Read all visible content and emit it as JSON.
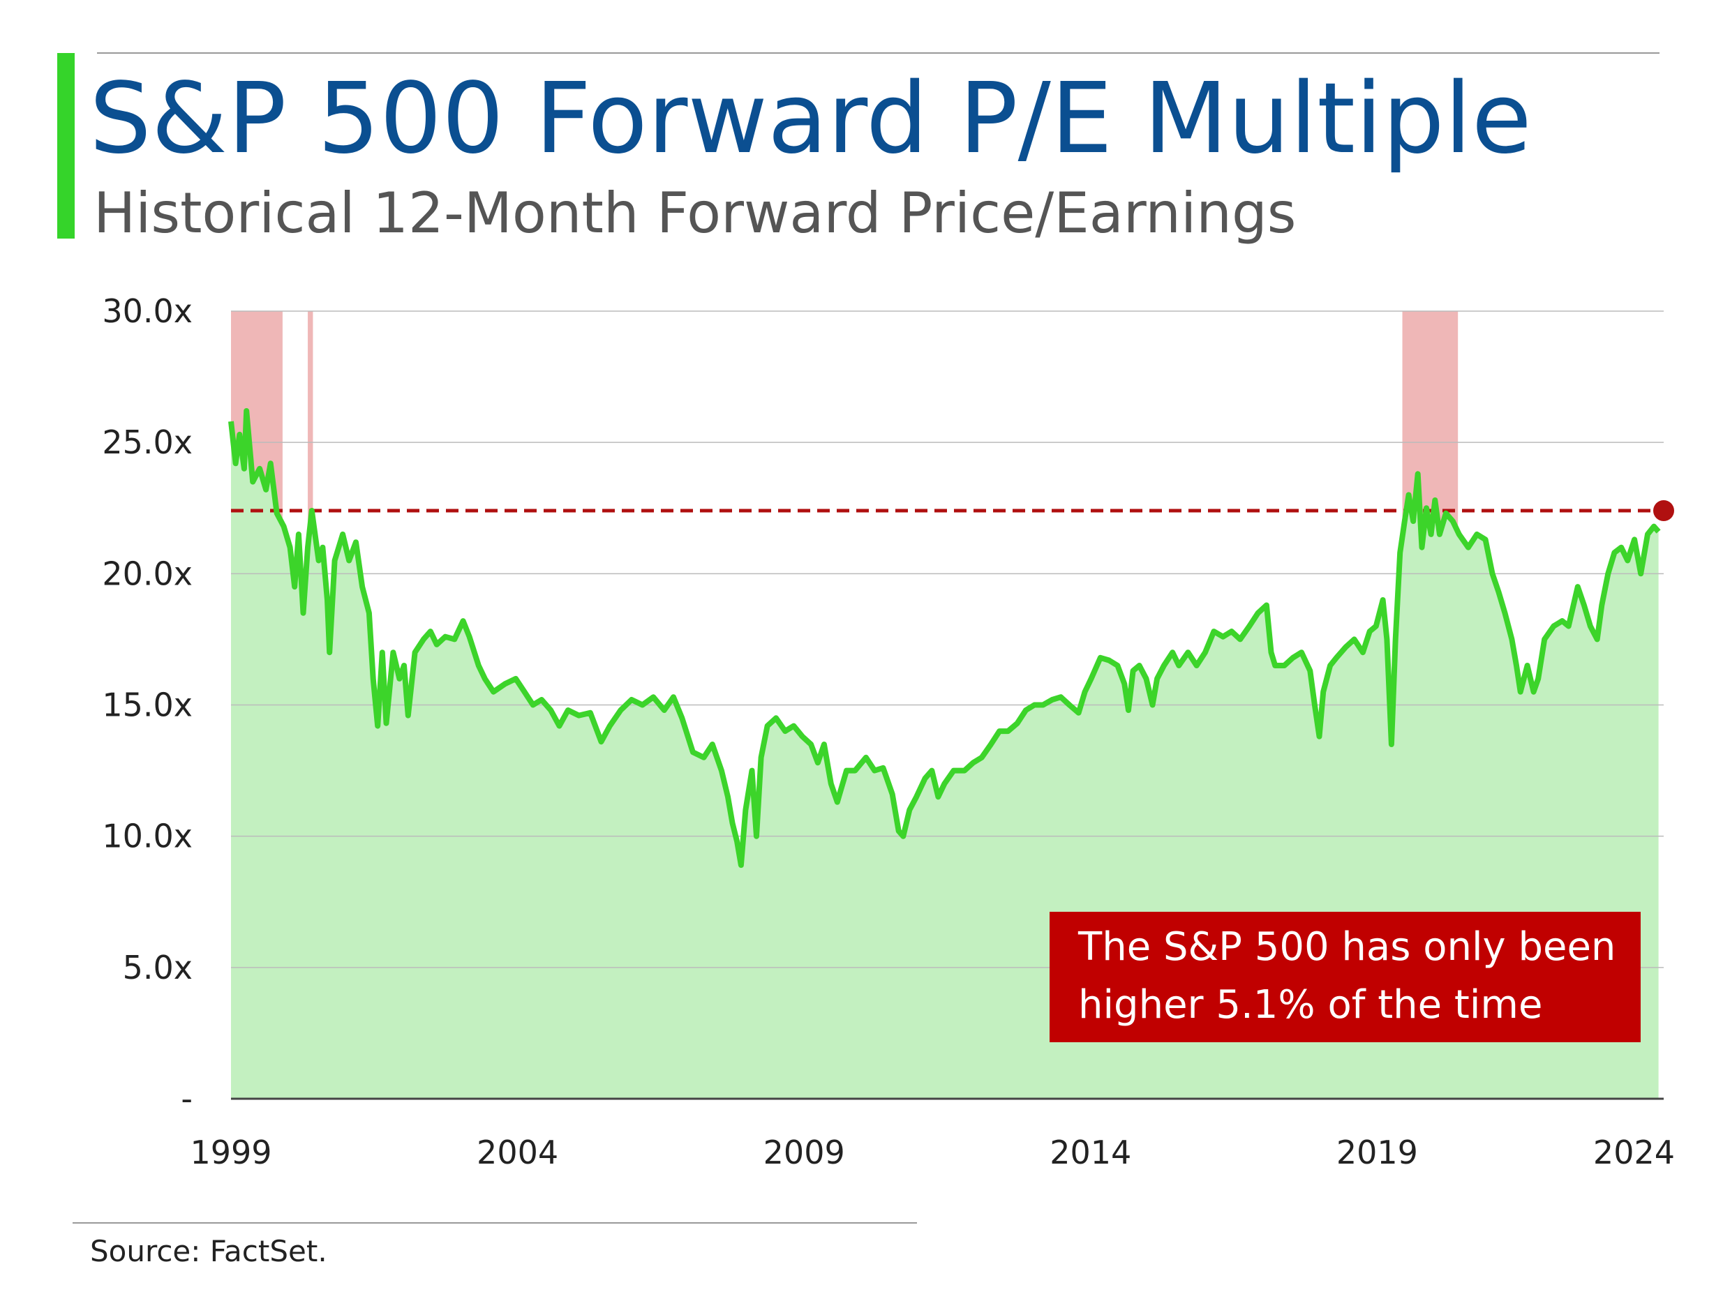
{
  "title": "S&P 500 Forward P/E Multiple",
  "subtitle": "Historical 12-Month Forward Price/Earnings",
  "source": "Source: FactSet.",
  "chart_data": {
    "type": "area-line",
    "xlim": [
      1999,
      2024
    ],
    "xticks": [
      1999,
      2004,
      2009,
      2014,
      2019,
      2024
    ],
    "ylim": [
      0,
      30
    ],
    "yticks": [
      {
        "value": 0,
        "label": "-"
      },
      {
        "value": 5,
        "label": "5.0x"
      },
      {
        "value": 10,
        "label": "10.0x"
      },
      {
        "value": 15,
        "label": "15.0x"
      },
      {
        "value": 20,
        "label": "20.0x"
      },
      {
        "value": 25,
        "label": "25.0x"
      },
      {
        "value": 30,
        "label": "30.0x"
      }
    ],
    "grid": true,
    "color": "#3cd42a",
    "fill_color": "#c3f0c0",
    "reference_line": 22.4,
    "reference_color": "#b01010",
    "highlight_ranges": [
      [
        1999.0,
        1999.9
      ],
      [
        2000.34,
        2000.43
      ],
      [
        2019.44,
        2020.41
      ]
    ],
    "highlight_color": "#e07070",
    "annotation": [
      "The S&P 500 has only been",
      "higher 5.1% of the time"
    ],
    "annotation_color": "#c00000",
    "x": [
      1999.0,
      1999.08,
      1999.15,
      1999.23,
      1999.27,
      1999.38,
      1999.5,
      1999.61,
      1999.69,
      1999.8,
      1999.92,
      2000.03,
      2000.11,
      2000.18,
      2000.26,
      2000.34,
      2000.41,
      2000.53,
      2000.6,
      2000.68,
      2000.72,
      2000.81,
      2000.95,
      2001.06,
      2001.18,
      2001.29,
      2001.41,
      2001.48,
      2001.56,
      2001.64,
      2001.71,
      2001.83,
      2001.94,
      2002.02,
      2002.09,
      2002.21,
      2002.36,
      2002.48,
      2002.59,
      2002.74,
      2002.9,
      2003.05,
      2003.16,
      2003.32,
      2003.43,
      2003.58,
      2003.78,
      2003.97,
      2004.12,
      2004.27,
      2004.42,
      2004.58,
      2004.73,
      2004.88,
      2005.07,
      2005.27,
      2005.46,
      2005.61,
      2005.8,
      2005.99,
      2006.18,
      2006.37,
      2006.56,
      2006.72,
      2006.87,
      2007.06,
      2007.25,
      2007.4,
      2007.56,
      2007.67,
      2007.75,
      2007.83,
      2007.9,
      2007.98,
      2008.09,
      2008.17,
      2008.25,
      2008.36,
      2008.51,
      2008.67,
      2008.82,
      2008.97,
      2009.12,
      2009.24,
      2009.35,
      2009.47,
      2009.58,
      2009.74,
      2009.89,
      2010.08,
      2010.23,
      2010.38,
      2010.54,
      2010.65,
      2010.73,
      2010.84,
      2010.96,
      2011.11,
      2011.23,
      2011.34,
      2011.45,
      2011.61,
      2011.8,
      2011.95,
      2012.1,
      2012.26,
      2012.41,
      2012.56,
      2012.72,
      2012.87,
      2013.02,
      2013.17,
      2013.33,
      2013.48,
      2013.63,
      2013.79,
      2013.9,
      2014.01,
      2014.17,
      2014.32,
      2014.47,
      2014.59,
      2014.66,
      2014.74,
      2014.85,
      2014.97,
      2015.08,
      2015.16,
      2015.28,
      2015.43,
      2015.54,
      2015.7,
      2015.85,
      2016.0,
      2016.15,
      2016.31,
      2016.46,
      2016.61,
      2016.77,
      2016.92,
      2017.07,
      2017.15,
      2017.22,
      2017.38,
      2017.53,
      2017.68,
      2017.83,
      2017.91,
      2017.99,
      2018.06,
      2018.18,
      2018.29,
      2018.45,
      2018.6,
      2018.75,
      2018.87,
      2018.98,
      2019.1,
      2019.17,
      2019.25,
      2019.32,
      2019.4,
      2019.48,
      2019.55,
      2019.63,
      2019.71,
      2019.78,
      2019.86,
      2019.94,
      2020.01,
      2020.09,
      2020.2,
      2020.32,
      2020.43,
      2020.59,
      2020.74,
      2020.89,
      2021.01,
      2021.12,
      2021.23,
      2021.35,
      2021.43,
      2021.5,
      2021.62,
      2021.73,
      2021.81,
      2021.92,
      2022.08,
      2022.23,
      2022.34,
      2022.5,
      2022.61,
      2022.72,
      2022.84,
      2022.92,
      2023.03,
      2023.14,
      2023.26,
      2023.37,
      2023.49,
      2023.6,
      2023.72,
      2023.83,
      2023.91
    ],
    "values": [
      25.8,
      24.2,
      25.3,
      24.0,
      26.2,
      23.5,
      24.0,
      23.2,
      24.2,
      22.3,
      21.8,
      21.0,
      19.5,
      21.5,
      18.5,
      21.0,
      22.4,
      20.5,
      21.0,
      19.0,
      17.0,
      20.5,
      21.5,
      20.5,
      21.2,
      19.5,
      18.5,
      16.0,
      14.2,
      17.0,
      14.3,
      17.0,
      16.0,
      16.5,
      14.6,
      17.0,
      17.5,
      17.8,
      17.3,
      17.6,
      17.5,
      18.2,
      17.6,
      16.5,
      16.0,
      15.5,
      15.8,
      16.0,
      15.5,
      15.0,
      15.2,
      14.8,
      14.2,
      14.8,
      14.6,
      14.7,
      13.6,
      14.2,
      14.8,
      15.2,
      15.0,
      15.3,
      14.8,
      15.3,
      14.5,
      13.2,
      13.0,
      13.5,
      12.5,
      11.5,
      10.5,
      9.8,
      8.9,
      11.0,
      12.5,
      10.0,
      13.0,
      14.2,
      14.5,
      14.0,
      14.2,
      13.8,
      13.5,
      12.8,
      13.5,
      12.0,
      11.3,
      12.5,
      12.5,
      13.0,
      12.5,
      12.6,
      11.6,
      10.2,
      10.0,
      11.0,
      11.5,
      12.2,
      12.5,
      11.5,
      12.0,
      12.5,
      12.5,
      12.8,
      13.0,
      13.5,
      14.0,
      14.0,
      14.3,
      14.8,
      15.0,
      15.0,
      15.2,
      15.3,
      15.0,
      14.7,
      15.5,
      16.0,
      16.8,
      16.7,
      16.5,
      15.8,
      14.8,
      16.3,
      16.5,
      16.0,
      15.0,
      16.0,
      16.5,
      17.0,
      16.5,
      17.0,
      16.5,
      17.0,
      17.8,
      17.6,
      17.8,
      17.5,
      18.0,
      18.5,
      18.8,
      17.0,
      16.5,
      16.5,
      16.8,
      17.0,
      16.3,
      15.0,
      13.8,
      15.5,
      16.5,
      16.8,
      17.2,
      17.5,
      17.0,
      17.8,
      18.0,
      19.0,
      17.5,
      13.5,
      17.5,
      20.8,
      22.0,
      23.0,
      22.0,
      23.8,
      21.0,
      22.5,
      21.5,
      22.8,
      21.5,
      22.3,
      22.0,
      21.5,
      21.0,
      21.5,
      21.3,
      20.0,
      19.3,
      18.5,
      17.5,
      16.5,
      15.5,
      16.5,
      15.5,
      16.0,
      17.5,
      18.0,
      18.2,
      18.0,
      19.5,
      18.8,
      18.0,
      17.5,
      18.8,
      20.0,
      20.8,
      21.0,
      20.5,
      21.3,
      20.0,
      21.5,
      21.8,
      21.6
    ]
  }
}
